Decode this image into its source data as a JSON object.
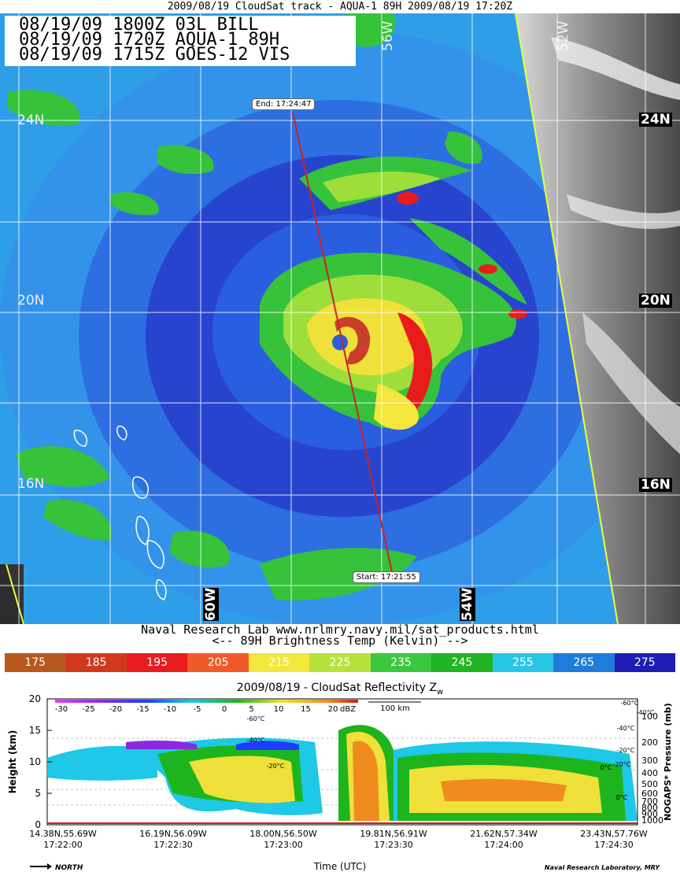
{
  "top_title": "2009/08/19 CloudSat track - AQUA-1 89H  2009/08/19 17:20Z",
  "header_lines": [
    "08/19/09 1800Z 03L BILL",
    "08/19/09 1720Z AQUA-1 89H",
    "08/19/09 1715Z GOES-12 VIS"
  ],
  "map": {
    "lat_labels": [
      "24N",
      "20N",
      "16N"
    ],
    "lat_labels_left": [
      "24N",
      "20N",
      "16N"
    ],
    "lon_labels_faint": [
      "56W",
      "52W"
    ],
    "lon_labels_box": [
      "60W",
      "54W"
    ],
    "track": {
      "end_label": "End: 17:24:47",
      "start_label": "Start: 17:21:55",
      "color": "#cc2222"
    }
  },
  "credit_line1": "Naval Research Lab  www.nrlmry.navy.mil/sat_products.html",
  "credit_line2": "<--   89H Brightness Temp (Kelvin)   -->",
  "colorbar": [
    {
      "label": "175",
      "color": "#b8581c"
    },
    {
      "label": "185",
      "color": "#d0391c"
    },
    {
      "label": "195",
      "color": "#e81c1c"
    },
    {
      "label": "205",
      "color": "#f05a2a"
    },
    {
      "label": "215",
      "color": "#f3e63c"
    },
    {
      "label": "225",
      "color": "#b6e23c"
    },
    {
      "label": "235",
      "color": "#3cc83c"
    },
    {
      "label": "245",
      "color": "#22b422"
    },
    {
      "label": "255",
      "color": "#28c6e6"
    },
    {
      "label": "265",
      "color": "#1e7cdc"
    },
    {
      "label": "275",
      "color": "#1e1eb4"
    }
  ],
  "cloudsat": {
    "title": "2009/08/19 - CloudSat Reflectivity Z",
    "title_sub": "w",
    "ylabel": "Height (km)",
    "yticks": [
      "20",
      "15",
      "10",
      "5",
      "0"
    ],
    "dbz_ticks": [
      "-30",
      "-25",
      "-20",
      "-15",
      "-10",
      "-5",
      "0",
      "5",
      "10",
      "15",
      "20"
    ],
    "dbz_unit": "dBZ",
    "scale_label": "100 km",
    "pressure_ticks": [
      "100",
      "200",
      "300",
      "400",
      "500",
      "600",
      "700",
      "800",
      "900",
      "1000"
    ],
    "pressure_label": "NOGAPS* Pressure (mb)",
    "temp_labels": [
      "-60°C",
      "-40°C",
      "-20°C",
      "-40°C",
      "-20°C",
      "0°C",
      "-60°C",
      "-40°C",
      "-20°C",
      "0°C"
    ],
    "x_locs": [
      "14.38N,55.69W",
      "16.19N,56.09W",
      "18.00N,56.50W",
      "19.81N,56.91W",
      "21.62N,57.34W",
      "23.43N,57.76W"
    ],
    "x_times": [
      "17:22:00",
      "17:22:30",
      "17:23:00",
      "17:23:30",
      "17:24:00",
      "17:24:30"
    ],
    "xlabel": "Time (UTC)",
    "north_label": "NORTH",
    "lab_credit": "Naval Research Laboratory, MRY"
  }
}
